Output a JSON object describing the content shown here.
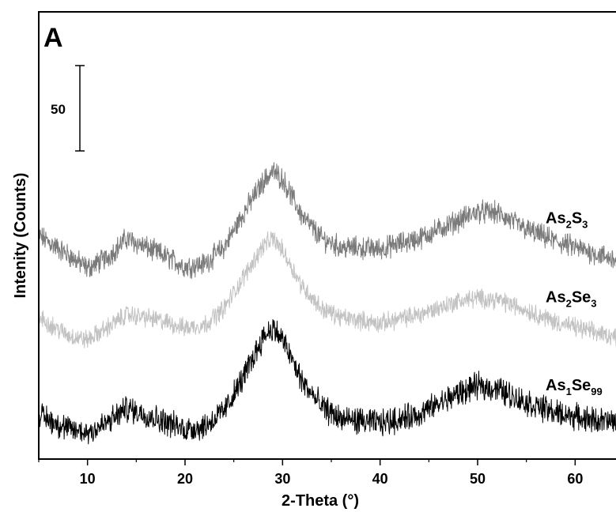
{
  "chart_data": {
    "type": "line",
    "panel_label": "A",
    "xlabel": "2-Theta (°)",
    "ylabel": "Intenity (Counts)",
    "xlim": [
      5,
      65
    ],
    "xticks": [
      10,
      20,
      30,
      40,
      50,
      60
    ],
    "xtick_labels": [
      "10",
      "20",
      "30",
      "40",
      "50",
      "60"
    ],
    "ylim": [
      0,
      300
    ],
    "y_ticks_shown": false,
    "grid": false,
    "scale_bar": {
      "label": "50",
      "value": 50
    },
    "series": [
      {
        "name": "As2S3",
        "label_parts": [
          [
            "As",
            ""
          ],
          [
            "2",
            "sub"
          ],
          [
            "S",
            ""
          ],
          [
            "3",
            "sub"
          ]
        ],
        "color": "#7a7a7a",
        "noise": 6,
        "x": [
          5,
          8,
          10,
          12,
          14,
          16,
          18,
          20,
          22,
          24,
          26,
          28,
          29,
          30,
          32,
          34,
          36,
          40,
          44,
          48,
          50,
          52,
          55,
          58,
          62,
          65
        ],
        "y": [
          150,
          137,
          128,
          135,
          148,
          142,
          136,
          129,
          131,
          142,
          165,
          186,
          193,
          188,
          163,
          148,
          142,
          141,
          148,
          160,
          166,
          165,
          154,
          146,
          138,
          132
        ]
      },
      {
        "name": "As2Se3",
        "label_parts": [
          [
            "As",
            ""
          ],
          [
            "2",
            "sub"
          ],
          [
            "Se",
            ""
          ],
          [
            "3",
            "sub"
          ]
        ],
        "color": "#c2c2c2",
        "noise": 5,
        "x": [
          5,
          8,
          10,
          12,
          14,
          16,
          18,
          20,
          22,
          24,
          26,
          28,
          29,
          30,
          32,
          34,
          36,
          40,
          44,
          48,
          50,
          52,
          55,
          58,
          62,
          65
        ],
        "y": [
          95,
          83,
          80,
          88,
          97,
          95,
          92,
          88,
          90,
          101,
          122,
          143,
          148,
          140,
          116,
          101,
          95,
          91,
          97,
          106,
          108,
          107,
          100,
          92,
          85,
          81
        ]
      },
      {
        "name": "As1Se99",
        "label_parts": [
          [
            "As",
            ""
          ],
          [
            "1",
            "sub"
          ],
          [
            "Se",
            ""
          ],
          [
            "99",
            "sub"
          ]
        ],
        "color": "#000000",
        "noise": 7,
        "x": [
          5,
          8,
          10,
          12,
          14,
          16,
          18,
          20,
          22,
          24,
          26,
          28,
          29,
          30,
          32,
          34,
          36,
          40,
          44,
          48,
          50,
          52,
          55,
          58,
          62,
          65
        ],
        "y": [
          30,
          20,
          18,
          24,
          34,
          30,
          25,
          20,
          22,
          32,
          55,
          82,
          88,
          80,
          52,
          35,
          27,
          24,
          30,
          44,
          49,
          47,
          38,
          31,
          26,
          24
        ]
      }
    ]
  }
}
